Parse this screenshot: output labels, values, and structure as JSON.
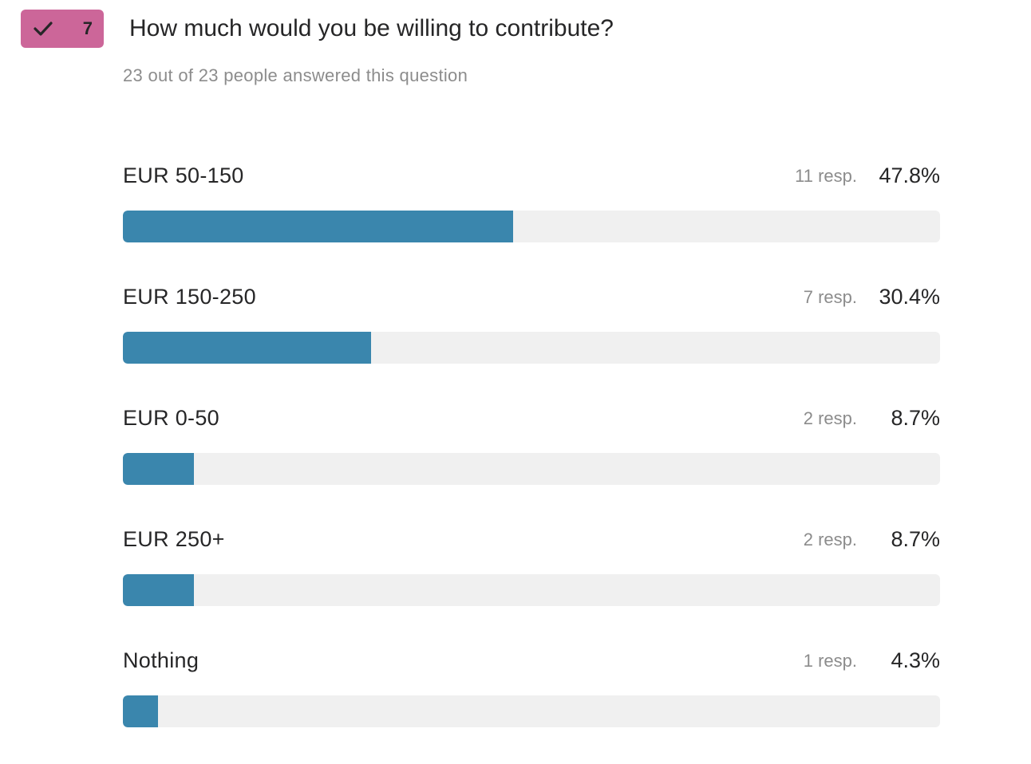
{
  "question": {
    "number": "7",
    "title": "How much would you be willing to contribute?",
    "subtitle": "23 out of 23 people answered this question",
    "badge_color": "#cc6699",
    "badge_icon": "check-icon"
  },
  "colors": {
    "bar_fill": "#3a86ad",
    "bar_track": "#f0f0f0"
  },
  "chart_data": {
    "type": "bar",
    "categories": [
      "EUR 50-150",
      "EUR 150-250",
      "EUR 0-50",
      "EUR 250+",
      "Nothing"
    ],
    "values": [
      47.8,
      30.4,
      8.7,
      8.7,
      4.3
    ],
    "responses": [
      11,
      7,
      2,
      2,
      1
    ],
    "total": 23
  },
  "answers": [
    {
      "label": "EUR 50-150",
      "count": "11 resp.",
      "percent": "47.8%",
      "value": 47.8
    },
    {
      "label": "EUR 150-250",
      "count": "7 resp.",
      "percent": "30.4%",
      "value": 30.4
    },
    {
      "label": "EUR 0-50",
      "count": "2 resp.",
      "percent": "8.7%",
      "value": 8.7
    },
    {
      "label": "EUR 250+",
      "count": "2 resp.",
      "percent": "8.7%",
      "value": 8.7
    },
    {
      "label": "Nothing",
      "count": "1 resp.",
      "percent": "4.3%",
      "value": 4.3
    }
  ]
}
